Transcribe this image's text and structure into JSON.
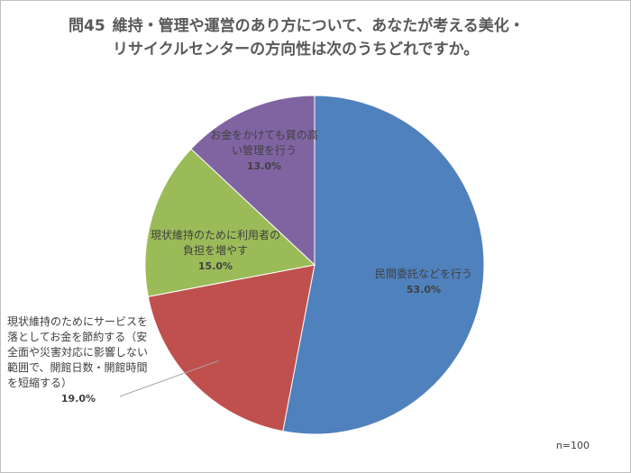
{
  "header": {
    "question_number": "問45",
    "title_line1": "維持・管理や運営のあり方について、あなたが考える美化・",
    "title_line2": "リサイクルセンターの方向性は次のうちどれですか。"
  },
  "note": "n=100",
  "chart_data": {
    "type": "pie",
    "title": "問45 維持・管理や運営のあり方について、あなたが考える美化・リサイクルセンターの方向性は次のうちどれですか。",
    "start": "12 o'clock",
    "direction": "clockwise",
    "slices": [
      {
        "label": "民間委託などを行う",
        "value": 53.0,
        "value_label": "53.0%",
        "color": "#4f81bd"
      },
      {
        "label": "現状維持のためにサービスを落としてお金を節約する（安全面や災害対応に影響しない範囲で、開館日数・開館時間を短縮する）",
        "value": 19.0,
        "value_label": "19.0%",
        "color": "#c0504d"
      },
      {
        "label": "現状維持のために利用者の負担を増やす",
        "value": 15.0,
        "value_label": "15.0%",
        "color": "#9bbb59"
      },
      {
        "label": "お金をかけても質の高い管理を行う",
        "value": 13.0,
        "value_label": "13.0%",
        "color": "#8064a2"
      }
    ]
  }
}
